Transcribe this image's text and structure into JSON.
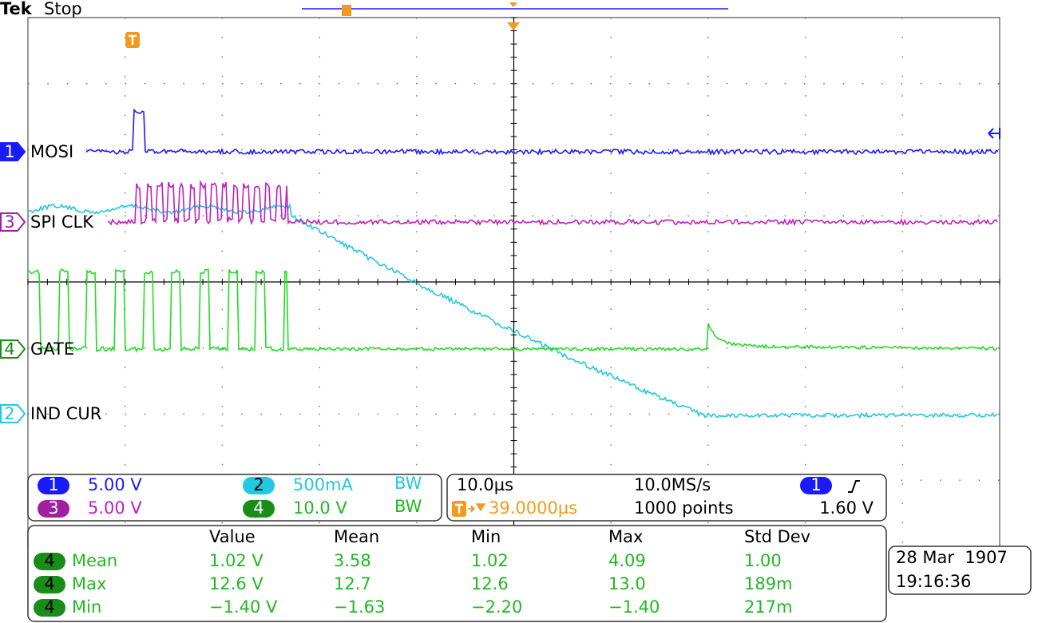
{
  "header": {
    "brand": "Tek",
    "status": "Stop"
  },
  "channels": [
    {
      "number": "1",
      "label": "MOSI",
      "scale": "5.00 V",
      "color": "#1a1aff",
      "text_color": "#1a1aff",
      "marker_filled": true
    },
    {
      "number": "3",
      "label": "SPI CLK",
      "scale": "5.00 V",
      "color": "#a020a0",
      "text_color": "#c020c0",
      "marker_filled": false
    },
    {
      "number": "4",
      "label": "GATE",
      "scale": "10.0 V",
      "color": "#1a8c1a",
      "text_color": "#22b822",
      "marker_filled": false,
      "bw": "BW"
    },
    {
      "number": "2",
      "label": "IND CUR",
      "scale": "500mA",
      "color": "#22c8e0",
      "text_color": "#22c8e0",
      "marker_filled": false,
      "bw": "BW"
    }
  ],
  "acquisition": {
    "timebase": "10.0µs",
    "sample_rate": "10.0MS/s",
    "record_length": "1000 points",
    "trigger_position": "39.0000µs",
    "trigger_source": "1",
    "trigger_level": "1.60 V"
  },
  "measurements": {
    "columns": [
      "Value",
      "Mean",
      "Min",
      "Max",
      "Std Dev"
    ],
    "rows": [
      {
        "source": "4",
        "name": "Mean",
        "cells": [
          "1.02 V",
          "3.58",
          "1.02",
          "4.09",
          "1.00"
        ]
      },
      {
        "source": "4",
        "name": "Max",
        "cells": [
          "12.6 V",
          "12.7",
          "12.6",
          "13.0",
          "189m"
        ]
      },
      {
        "source": "4",
        "name": "Min",
        "cells": [
          "−1.40 V",
          "−1.63",
          "−2.20",
          "−1.40",
          "217m"
        ]
      }
    ]
  },
  "timestamp": {
    "date": "28 Mar  1907",
    "time": "19:16:36"
  }
}
